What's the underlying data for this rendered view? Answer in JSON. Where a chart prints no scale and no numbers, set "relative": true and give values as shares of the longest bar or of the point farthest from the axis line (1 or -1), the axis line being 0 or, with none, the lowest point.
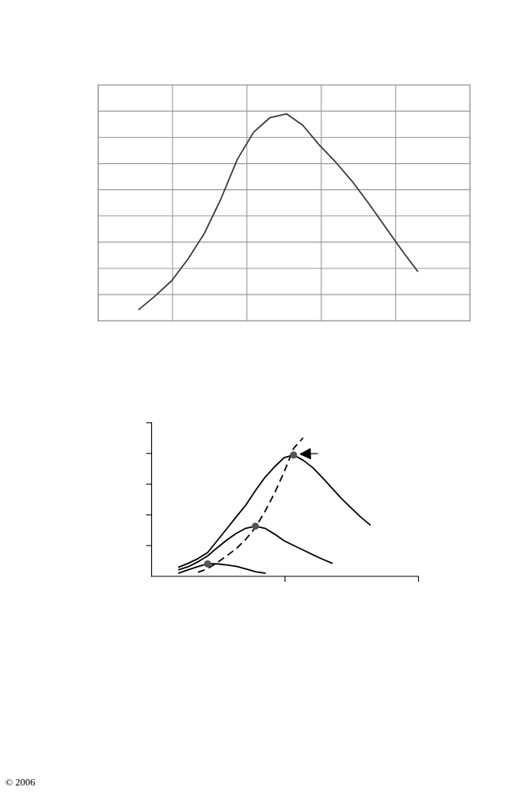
{
  "chart_data": [
    {
      "type": "line",
      "relative": true,
      "grid": true,
      "categories": [
        null,
        null,
        null,
        null,
        null,
        null,
        null,
        null,
        null,
        null,
        null,
        null,
        null,
        null,
        null,
        null,
        null,
        null
      ],
      "series": [
        {
          "color": "#3a3a3a",
          "values": [
            0.055,
            0.121,
            0.194,
            0.299,
            0.424,
            0.589,
            0.78,
            0.912,
            0.982,
            1.0,
            0.945,
            0.85,
            0.767,
            0.675,
            0.569,
            0.457,
            0.345,
            0.24
          ]
        }
      ]
    },
    {
      "type": "line",
      "relative": true,
      "line_style": "solid",
      "annotations": [
        "© 2006"
      ],
      "categories": [
        null,
        null,
        null,
        null,
        null,
        null,
        null,
        null,
        null,
        null,
        null,
        null,
        null,
        null,
        null,
        null,
        null,
        null,
        null,
        null,
        null
      ],
      "series": [
        {
          "color": "#000000",
          "values": [
            0.067,
            0.095,
            0.128,
            0.171,
            0.257,
            0.343,
            0.429,
            0.514,
            0.619,
            0.714,
            0.79,
            0.857,
            0.876,
            0.838,
            0.785,
            0.714,
            0.638,
            0.562,
            0.495,
            0.429,
            0.371
          ]
        },
        {
          "color": "#000000",
          "values": [
            0.048,
            0.07,
            0.105,
            0.147,
            0.206,
            0.261,
            0.31,
            0.347,
            0.362,
            0.347,
            0.305,
            0.257,
            0.223,
            0.19,
            0.156,
            0.124,
            0.095,
            null,
            null,
            null,
            null
          ]
        },
        {
          "color": "#000000",
          "values": [
            0.023,
            0.048,
            0.07,
            0.09,
            0.09,
            0.082,
            0.072,
            0.053,
            0.034,
            0.023,
            null,
            null,
            null,
            null,
            null,
            null,
            null,
            null,
            null,
            null,
            null
          ]
        },
        {
          "color": "#000000",
          "line_style": "dashed",
          "values": [
            null,
            null,
            0.029,
            0.055,
            0.099,
            0.147,
            0.2,
            0.267,
            0.352,
            0.467,
            0.6,
            0.752,
            0.924,
            1.0,
            null,
            null,
            null,
            null,
            null,
            null,
            null
          ]
        }
      ]
    }
  ]
}
